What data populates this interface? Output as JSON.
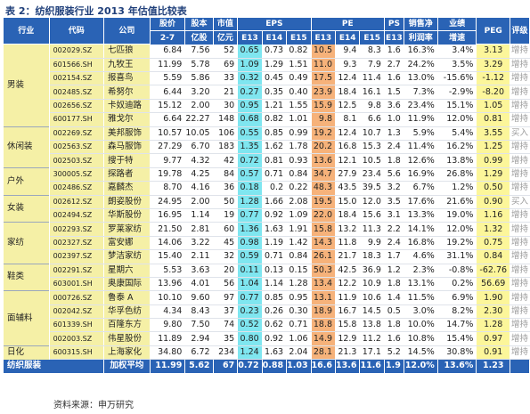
{
  "title": "表 2：纺织服装行业 2013 年估值比较表",
  "headers": {
    "industry": "行业",
    "code": "代码",
    "company": "公司",
    "price": "股价",
    "price_sub": "2-7",
    "shares": "股本",
    "shares_sub": "亿股",
    "mktcap": "市值",
    "mktcap_sub": "亿元",
    "eps": "EPS",
    "pe": "PE",
    "ps": "PS",
    "margin": "销售净",
    "margin_sub": "利润率",
    "growth": "业绩",
    "growth_sub": "增速",
    "peg": "PEG",
    "rating": "评级",
    "e13": "E13",
    "e14": "E14",
    "e15": "E15"
  },
  "groups": [
    {
      "industry": "男装",
      "rows": [
        {
          "code": "002029.SZ",
          "company": "七匹狼",
          "price": "6.84",
          "shares": "7.56",
          "mktcap": "52",
          "eps13": "0.65",
          "eps14": "0.73",
          "eps15": "0.82",
          "pe13": "10.5",
          "pe14": "9.4",
          "pe15": "8.3",
          "ps": "1.6",
          "margin": "16.3%",
          "growth": "3.4%",
          "peg": "3.13",
          "rating": "增持"
        },
        {
          "code": "601566.SH",
          "company": "九牧王",
          "price": "11.99",
          "shares": "5.78",
          "mktcap": "69",
          "eps13": "1.09",
          "eps14": "1.29",
          "eps15": "1.51",
          "pe13": "11.0",
          "pe14": "9.3",
          "pe15": "7.9",
          "ps": "2.7",
          "margin": "24.2%",
          "growth": "3.5%",
          "peg": "3.29",
          "rating": "增持"
        },
        {
          "code": "002154.SZ",
          "company": "报喜鸟",
          "price": "5.59",
          "shares": "5.86",
          "mktcap": "33",
          "eps13": "0.32",
          "eps14": "0.45",
          "eps15": "0.49",
          "pe13": "17.5",
          "pe14": "12.4",
          "pe15": "11.4",
          "ps": "1.6",
          "margin": "13.0%",
          "growth": "-15.6%",
          "peg": "-1.12",
          "rating": "增持"
        },
        {
          "code": "002485.SZ",
          "company": "希努尔",
          "price": "6.44",
          "shares": "3.20",
          "mktcap": "21",
          "eps13": "0.27",
          "eps14": "0.35",
          "eps15": "0.40",
          "pe13": "23.9",
          "pe14": "18.4",
          "pe15": "16.1",
          "ps": "1.5",
          "margin": "7.3%",
          "growth": "-2.9%",
          "peg": "-8.20",
          "rating": "增持"
        },
        {
          "code": "002656.SZ",
          "company": "卡奴迪路",
          "price": "15.12",
          "shares": "2.00",
          "mktcap": "30",
          "eps13": "0.95",
          "eps14": "1.21",
          "eps15": "1.55",
          "pe13": "15.9",
          "pe14": "12.5",
          "pe15": "9.8",
          "ps": "3.6",
          "margin": "23.4%",
          "growth": "15.1%",
          "peg": "1.05",
          "rating": "增持"
        },
        {
          "code": "600177.SH",
          "company": "雅戈尔",
          "price": "6.64",
          "shares": "22.27",
          "mktcap": "148",
          "eps13": "0.68",
          "eps14": "0.82",
          "eps15": "1.01",
          "pe13": "9.8",
          "pe14": "8.1",
          "pe15": "6.6",
          "ps": "1.0",
          "margin": "11.9%",
          "growth": "12.0%",
          "peg": "0.81",
          "rating": "增持"
        }
      ]
    },
    {
      "industry": "休闲装",
      "rows": [
        {
          "code": "002269.SZ",
          "company": "美邦服饰",
          "price": "10.57",
          "shares": "10.05",
          "mktcap": "106",
          "eps13": "0.55",
          "eps14": "0.85",
          "eps15": "0.99",
          "pe13": "19.2",
          "pe14": "12.4",
          "pe15": "10.7",
          "ps": "1.3",
          "margin": "5.9%",
          "growth": "5.4%",
          "peg": "3.55",
          "rating": "买入"
        },
        {
          "code": "002563.SZ",
          "company": "森马服饰",
          "price": "27.29",
          "shares": "6.70",
          "mktcap": "183",
          "eps13": "1.35",
          "eps14": "1.62",
          "eps15": "1.78",
          "pe13": "20.2",
          "pe14": "16.8",
          "pe15": "15.3",
          "ps": "2.4",
          "margin": "11.4%",
          "growth": "16.2%",
          "peg": "1.25",
          "rating": "增持"
        },
        {
          "code": "002503.SZ",
          "company": "搜于特",
          "price": "9.77",
          "shares": "4.32",
          "mktcap": "42",
          "eps13": "0.72",
          "eps14": "0.81",
          "eps15": "0.93",
          "pe13": "13.6",
          "pe14": "12.1",
          "pe15": "10.5",
          "ps": "1.8",
          "margin": "12.6%",
          "growth": "13.8%",
          "peg": "0.99",
          "rating": "增持"
        }
      ]
    },
    {
      "industry": "户外",
      "rows": [
        {
          "code": "300005.SZ",
          "company": "探路者",
          "price": "19.78",
          "shares": "4.25",
          "mktcap": "84",
          "eps13": "0.57",
          "eps14": "0.71",
          "eps15": "0.84",
          "pe13": "34.7",
          "pe14": "27.9",
          "pe15": "23.4",
          "ps": "5.6",
          "margin": "16.9%",
          "growth": "26.8%",
          "peg": "1.29",
          "rating": "增持"
        },
        {
          "code": "002486.SZ",
          "company": "嘉麟杰",
          "price": "8.70",
          "shares": "4.16",
          "mktcap": "36",
          "eps13": "0.18",
          "eps14": "0.2",
          "eps15": "0.22",
          "pe13": "48.3",
          "pe14": "43.5",
          "pe15": "39.5",
          "ps": "3.2",
          "margin": "6.7%",
          "growth": "1.2%",
          "peg": "0.50",
          "rating": "增持"
        }
      ]
    },
    {
      "industry": "女装",
      "rows": [
        {
          "code": "002612.SZ",
          "company": "朗姿股份",
          "price": "24.95",
          "shares": "2.00",
          "mktcap": "50",
          "eps13": "1.28",
          "eps14": "1.66",
          "eps15": "2.08",
          "pe13": "19.5",
          "pe14": "15.0",
          "pe15": "12.0",
          "ps": "3.5",
          "margin": "17.6%",
          "growth": "21.6%",
          "peg": "0.90",
          "rating": "买入"
        },
        {
          "code": "002494.SZ",
          "company": "华斯股份",
          "price": "16.95",
          "shares": "1.14",
          "mktcap": "19",
          "eps13": "0.77",
          "eps14": "0.92",
          "eps15": "1.09",
          "pe13": "22.0",
          "pe14": "18.4",
          "pe15": "15.6",
          "ps": "3.1",
          "margin": "13.3%",
          "growth": "19.0%",
          "peg": "1.16",
          "rating": "增持"
        }
      ]
    },
    {
      "industry": "家纺",
      "rows": [
        {
          "code": "002293.SZ",
          "company": "罗莱家纺",
          "price": "21.50",
          "shares": "2.81",
          "mktcap": "60",
          "eps13": "1.36",
          "eps14": "1.63",
          "eps15": "1.91",
          "pe13": "15.8",
          "pe14": "13.2",
          "pe15": "11.3",
          "ps": "2.2",
          "margin": "14.1%",
          "growth": "12.0%",
          "peg": "1.32",
          "rating": "增持"
        },
        {
          "code": "002327.SZ",
          "company": "富安娜",
          "price": "14.06",
          "shares": "3.22",
          "mktcap": "45",
          "eps13": "0.98",
          "eps14": "1.19",
          "eps15": "1.42",
          "pe13": "14.3",
          "pe14": "11.8",
          "pe15": "9.9",
          "ps": "2.4",
          "margin": "16.8%",
          "growth": "19.2%",
          "peg": "0.75",
          "rating": "增持"
        },
        {
          "code": "002397.SZ",
          "company": "梦洁家纺",
          "price": "15.40",
          "shares": "2.11",
          "mktcap": "32",
          "eps13": "0.59",
          "eps14": "0.71",
          "eps15": "0.84",
          "pe13": "26.1",
          "pe14": "21.7",
          "pe15": "18.3",
          "ps": "1.7",
          "margin": "4.6%",
          "growth": "31.1%",
          "peg": "0.84",
          "rating": "增持"
        }
      ]
    },
    {
      "industry": "鞋类",
      "rows": [
        {
          "code": "002291.SZ",
          "company": "星期六",
          "price": "5.53",
          "shares": "3.63",
          "mktcap": "20",
          "eps13": "0.11",
          "eps14": "0.13",
          "eps15": "0.15",
          "pe13": "50.3",
          "pe14": "42.5",
          "pe15": "36.9",
          "ps": "1.2",
          "margin": "2.3%",
          "growth": "-0.8%",
          "peg": "-62.76",
          "rating": "增持"
        },
        {
          "code": "603001.SH",
          "company": "奥康国际",
          "price": "13.96",
          "shares": "4.01",
          "mktcap": "56",
          "eps13": "1.04",
          "eps14": "1.14",
          "eps15": "1.28",
          "pe13": "13.4",
          "pe14": "12.2",
          "pe15": "10.9",
          "ps": "1.8",
          "margin": "13.1%",
          "growth": "0.2%",
          "peg": "56.69",
          "rating": "增持"
        }
      ]
    },
    {
      "industry": "面辅料",
      "rows": [
        {
          "code": "000726.SZ",
          "company": "鲁泰 A",
          "price": "10.10",
          "shares": "9.60",
          "mktcap": "97",
          "eps13": "0.77",
          "eps14": "0.85",
          "eps15": "0.95",
          "pe13": "13.1",
          "pe14": "11.9",
          "pe15": "10.6",
          "ps": "1.4",
          "margin": "11.5%",
          "growth": "6.9%",
          "peg": "1.90",
          "rating": "增持"
        },
        {
          "code": "002042.SZ",
          "company": "华孚色纺",
          "price": "4.34",
          "shares": "8.43",
          "mktcap": "37",
          "eps13": "0.23",
          "eps14": "0.26",
          "eps15": "0.30",
          "pe13": "18.9",
          "pe14": "16.7",
          "pe15": "14.5",
          "ps": "0.5",
          "margin": "3.0%",
          "growth": "8.2%",
          "peg": "2.30",
          "rating": "增持"
        },
        {
          "code": "601339.SH",
          "company": "百隆东方",
          "price": "9.80",
          "shares": "7.50",
          "mktcap": "74",
          "eps13": "0.52",
          "eps14": "0.62",
          "eps15": "0.71",
          "pe13": "18.8",
          "pe14": "15.8",
          "pe15": "13.8",
          "ps": "1.8",
          "margin": "10.0%",
          "growth": "14.7%",
          "peg": "1.28",
          "rating": "增持"
        },
        {
          "code": "002003.SZ",
          "company": "伟星股份",
          "price": "11.89",
          "shares": "2.94",
          "mktcap": "35",
          "eps13": "0.80",
          "eps14": "0.92",
          "eps15": "1.06",
          "pe13": "14.9",
          "pe14": "12.9",
          "pe15": "11.2",
          "ps": "1.6",
          "margin": "10.8%",
          "growth": "15.4%",
          "peg": "0.97",
          "rating": "增持"
        }
      ]
    },
    {
      "industry": "日化",
      "rows": [
        {
          "code": "600315.SH",
          "company": "上海家化",
          "price": "34.80",
          "shares": "6.72",
          "mktcap": "234",
          "eps13": "1.24",
          "eps14": "1.63",
          "eps15": "2.04",
          "pe13": "28.1",
          "pe14": "21.3",
          "pe15": "17.1",
          "ps": "5.2",
          "margin": "14.5%",
          "growth": "30.8%",
          "peg": "0.91",
          "rating": "增持"
        }
      ]
    }
  ],
  "footer": {
    "label": "纺织服装",
    "company": "加权平均",
    "price": "11.99",
    "shares": "5.62",
    "mktcap": "67",
    "eps13": "0.72",
    "eps14": "0.88",
    "eps15": "1.03",
    "pe13": "16.6",
    "pe14": "13.6",
    "pe15": "11.6",
    "ps": "1.9",
    "margin": "12.0%",
    "growth": "13.6%",
    "peg": "1.23",
    "rating": ""
  },
  "source": "资料来源：申万研究"
}
